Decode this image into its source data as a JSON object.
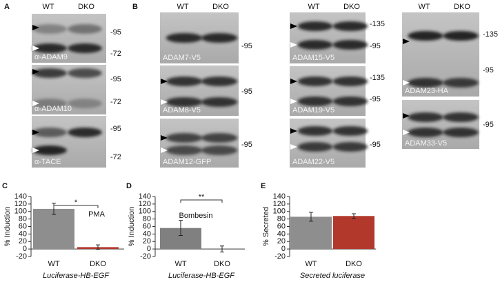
{
  "blot_panels": [
    {
      "letter": "A",
      "headers": [
        "WT",
        "DKO"
      ],
      "blots": [
        {
          "label": "α-ADAM9",
          "markers": [
            "-95",
            "-72"
          ]
        },
        {
          "label": "α-ADAM10",
          "markers": [
            "-95",
            "-72"
          ]
        },
        {
          "label": "α-TACE",
          "markers": [
            "-95",
            "-72"
          ]
        }
      ]
    },
    {
      "letter": "B",
      "headers": [
        "WT",
        "DKO"
      ],
      "blots": [
        {
          "label": "ADAM7-V5",
          "markers": [
            "-95"
          ]
        },
        {
          "label": "ADAM8-V5",
          "markers": [
            "-95"
          ]
        },
        {
          "label": "ADAM12-GFP",
          "markers": [
            "-95"
          ]
        }
      ]
    },
    {
      "headers": [
        "WT",
        "DKO"
      ],
      "blots": [
        {
          "label": "ADAM15-V5",
          "markers": [
            "-135",
            "-95"
          ]
        },
        {
          "label": "ADAM19-V5",
          "markers": [
            "-135",
            "-95"
          ]
        },
        {
          "label": "ADAM22-V5",
          "markers": [
            "-95"
          ]
        }
      ]
    },
    {
      "headers": [
        "WT",
        "DKO"
      ],
      "blots": [
        {
          "label": "ADAM23-HA",
          "markers": [
            "-135",
            "-95"
          ]
        },
        {
          "label": "ADAM33-V5",
          "markers": [
            "-95"
          ]
        }
      ]
    }
  ],
  "chart_data": [
    {
      "type": "bar",
      "panel_label": "C",
      "y_label": "% Induction",
      "x_label": "Luciferase-HB-EGF",
      "annotation": "PMA",
      "significance": "*",
      "categories": [
        "WT",
        "DKO"
      ],
      "values": [
        107,
        5
      ],
      "errors": [
        15,
        6
      ],
      "colors": [
        "#8e8e8e",
        "#b2382c"
      ],
      "ylim": [
        -20,
        140
      ],
      "yticks": [
        -20,
        0,
        20,
        40,
        60,
        80,
        100,
        120,
        140
      ]
    },
    {
      "type": "bar",
      "panel_label": "D",
      "y_label": "% Induction",
      "x_label": "Luciferase-HB-EGF",
      "annotation": "Bombesin",
      "significance": "**",
      "categories": [
        "WT",
        "DKO"
      ],
      "values": [
        56,
        0
      ],
      "errors": [
        20,
        8
      ],
      "colors": [
        "#808080",
        "#b2382c"
      ],
      "ylim": [
        -20,
        140
      ],
      "yticks": [
        -20,
        0,
        20,
        40,
        60,
        80,
        100,
        120,
        140
      ]
    },
    {
      "type": "bar",
      "panel_label": "E",
      "y_label": "% Secreted",
      "x_label": "Secreted luciferase",
      "categories": [
        "WT",
        "DKO"
      ],
      "values": [
        86,
        88
      ],
      "errors": [
        12,
        6
      ],
      "colors": [
        "#8e8e8e",
        "#b2382c"
      ],
      "ylim": [
        -20,
        140
      ],
      "yticks": [
        -20,
        0,
        20,
        40,
        60,
        80,
        100,
        120,
        140
      ]
    }
  ]
}
